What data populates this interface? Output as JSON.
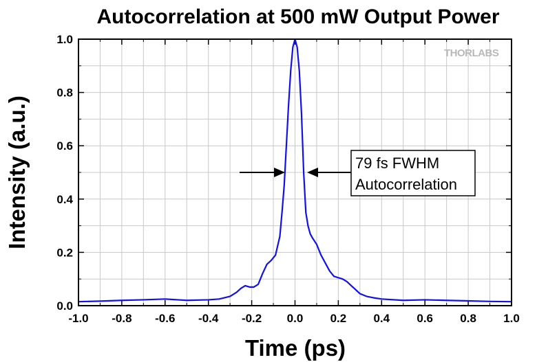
{
  "chart_data": {
    "type": "line",
    "title": "Autocorrelation at 500 mW Output Power",
    "xlabel": "Time (ps)",
    "ylabel": "Intensity (a.u.)",
    "xlim": [
      -1.0,
      1.0
    ],
    "ylim": [
      0.0,
      1.0
    ],
    "xticks": [
      "-1.0",
      "-0.8",
      "-0.6",
      "-0.4",
      "-0.2",
      "0.0",
      "0.2",
      "0.4",
      "0.6",
      "0.8",
      "1.0"
    ],
    "yticks": [
      "0.0",
      "0.2",
      "0.4",
      "0.6",
      "0.8",
      "1.0"
    ],
    "grid": true,
    "line_color": "#1010ee",
    "series": [
      {
        "x": [
          -1.0,
          -0.9,
          -0.8,
          -0.7,
          -0.6,
          -0.5,
          -0.4,
          -0.35,
          -0.3,
          -0.27,
          -0.25,
          -0.23,
          -0.21,
          -0.19,
          -0.17,
          -0.15,
          -0.13,
          -0.11,
          -0.09,
          -0.07,
          -0.06,
          -0.05,
          -0.04,
          -0.03,
          -0.02,
          -0.01,
          0.0,
          0.01,
          0.02,
          0.03,
          0.04,
          0.05,
          0.06,
          0.07,
          0.08,
          0.1,
          0.12,
          0.14,
          0.16,
          0.18,
          0.2,
          0.22,
          0.24,
          0.26,
          0.28,
          0.3,
          0.33,
          0.36,
          0.4,
          0.5,
          0.6,
          0.7,
          0.8,
          0.9,
          1.0
        ],
        "y": [
          0.015,
          0.017,
          0.02,
          0.022,
          0.025,
          0.02,
          0.022,
          0.025,
          0.035,
          0.05,
          0.065,
          0.075,
          0.07,
          0.07,
          0.08,
          0.12,
          0.155,
          0.17,
          0.19,
          0.26,
          0.35,
          0.45,
          0.6,
          0.75,
          0.88,
          0.97,
          1.0,
          0.97,
          0.88,
          0.72,
          0.5,
          0.35,
          0.3,
          0.27,
          0.255,
          0.23,
          0.19,
          0.16,
          0.13,
          0.11,
          0.105,
          0.1,
          0.09,
          0.075,
          0.06,
          0.045,
          0.035,
          0.03,
          0.025,
          0.02,
          0.022,
          0.02,
          0.018,
          0.016,
          0.015
        ]
      }
    ],
    "annotations": [
      {
        "text_line1": "79 fs FWHM",
        "text_line2": "Autocorrelation"
      }
    ],
    "watermark": "THORLABS"
  }
}
